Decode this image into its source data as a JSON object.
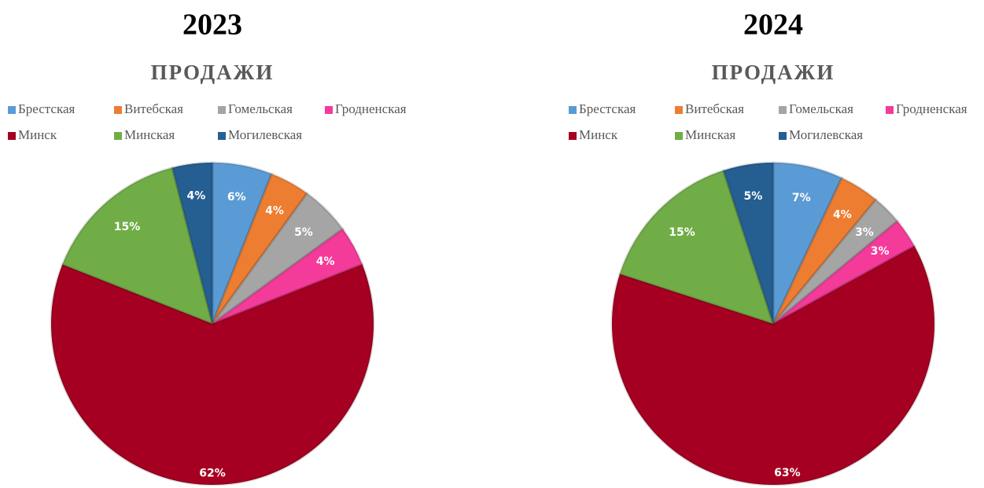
{
  "chart_data": [
    {
      "type": "pie",
      "heading": "2023",
      "title": "ПРОДАЖИ",
      "categories": [
        "Брестская",
        "Витебская",
        "Гомельская",
        "Гродненская",
        "Минск",
        "Минская",
        "Могилевская"
      ],
      "values": [
        6,
        4,
        5,
        4,
        62,
        15,
        4
      ],
      "value_labels": [
        "6%",
        "4%",
        "5%",
        "4%",
        "62%",
        "15%",
        "4%"
      ],
      "colors": [
        "#5b9bd5",
        "#ed7d31",
        "#a5a5a5",
        "#f43b9a",
        "#a50021",
        "#70ad47",
        "#255e91"
      ],
      "legend": "top"
    },
    {
      "type": "pie",
      "heading": "2024",
      "title": "ПРОДАЖИ",
      "categories": [
        "Брестская",
        "Витебская",
        "Гомельская",
        "Гродненская",
        "Минск",
        "Минская",
        "Могилевская"
      ],
      "values": [
        7,
        4,
        3,
        3,
        63,
        15,
        5
      ],
      "value_labels": [
        "7%",
        "4%",
        "3%",
        "3%",
        "63%",
        "15%",
        "5%"
      ],
      "colors": [
        "#5b9bd5",
        "#ed7d31",
        "#a5a5a5",
        "#f43b9a",
        "#a50021",
        "#70ad47",
        "#255e91"
      ],
      "legend": "top"
    }
  ]
}
